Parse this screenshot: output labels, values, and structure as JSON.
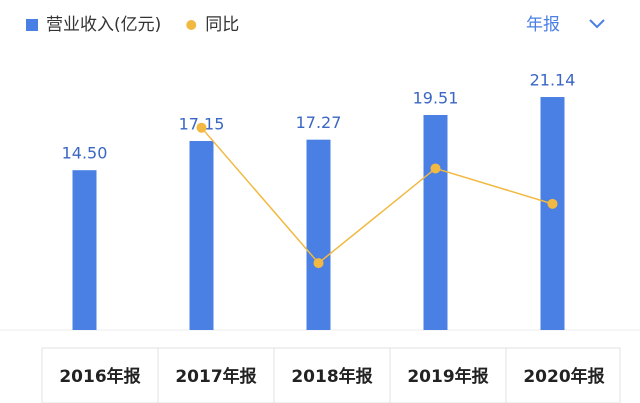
{
  "chart_data": {
    "type": "bar",
    "categories": [
      "2016年报",
      "2017年报",
      "2018年报",
      "2019年报",
      "2020年报"
    ],
    "series": [
      {
        "name": "营业收入(亿元)",
        "type": "bar",
        "color": "#4a7fe3",
        "values": [
          14.5,
          17.15,
          17.27,
          19.51,
          21.14
        ],
        "value_labels": [
          "14.50",
          "17.15",
          "17.27",
          "19.51",
          "21.14"
        ]
      },
      {
        "name": "同比",
        "type": "line",
        "axis": "y2",
        "color": "#f1b941",
        "values": [
          null,
          18.3,
          0.7,
          13.0,
          8.4
        ]
      }
    ],
    "ylim": [
      0,
      24.5
    ],
    "y2lim": [
      -8,
      27.1
    ],
    "legend": "top-left"
  },
  "controls": {
    "period": "年报"
  }
}
